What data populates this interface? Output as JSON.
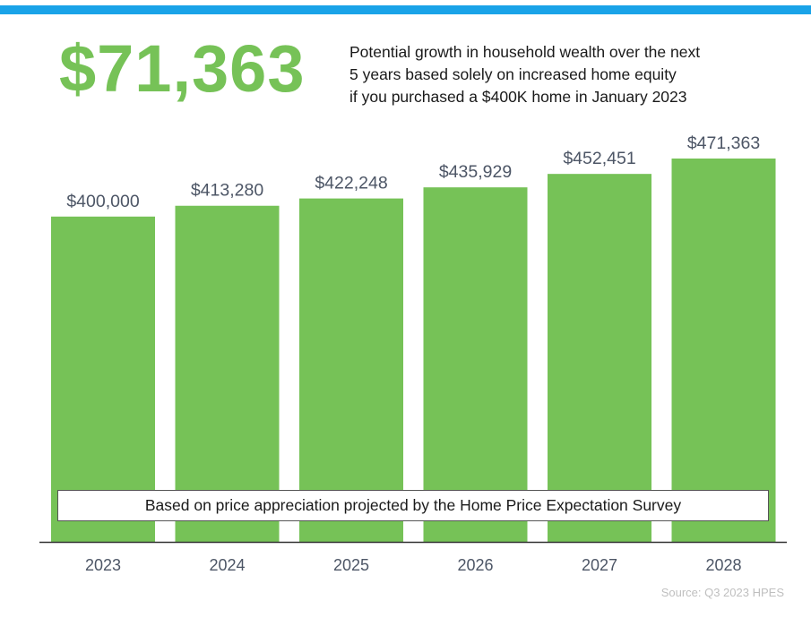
{
  "headline": "$71,363",
  "subtitle_lines": [
    "Potential growth in household wealth over the next",
    "5 years based solely on increased home equity",
    "if you purchased a $400K home in January 2023"
  ],
  "note": "Based on price appreciation projected by the Home Price Expectation Survey",
  "source": "Source: Q3 2023 HPES",
  "colors": {
    "bar": "#76c257",
    "headline": "#76c257",
    "stripe": "#1aa3e8",
    "axis": "#333333"
  },
  "chart_data": {
    "type": "bar",
    "categories": [
      "2023",
      "2024",
      "2025",
      "2026",
      "2027",
      "2028"
    ],
    "values": [
      400000,
      413280,
      422248,
      435929,
      452451,
      471363
    ],
    "value_labels": [
      "$400,000",
      "$413,280",
      "$422,248",
      "$435,929",
      "$452,451",
      "$471,363"
    ],
    "title": "",
    "xlabel": "",
    "ylabel": "",
    "ylim": [
      0,
      471363
    ],
    "grid": false,
    "legend": "none"
  }
}
